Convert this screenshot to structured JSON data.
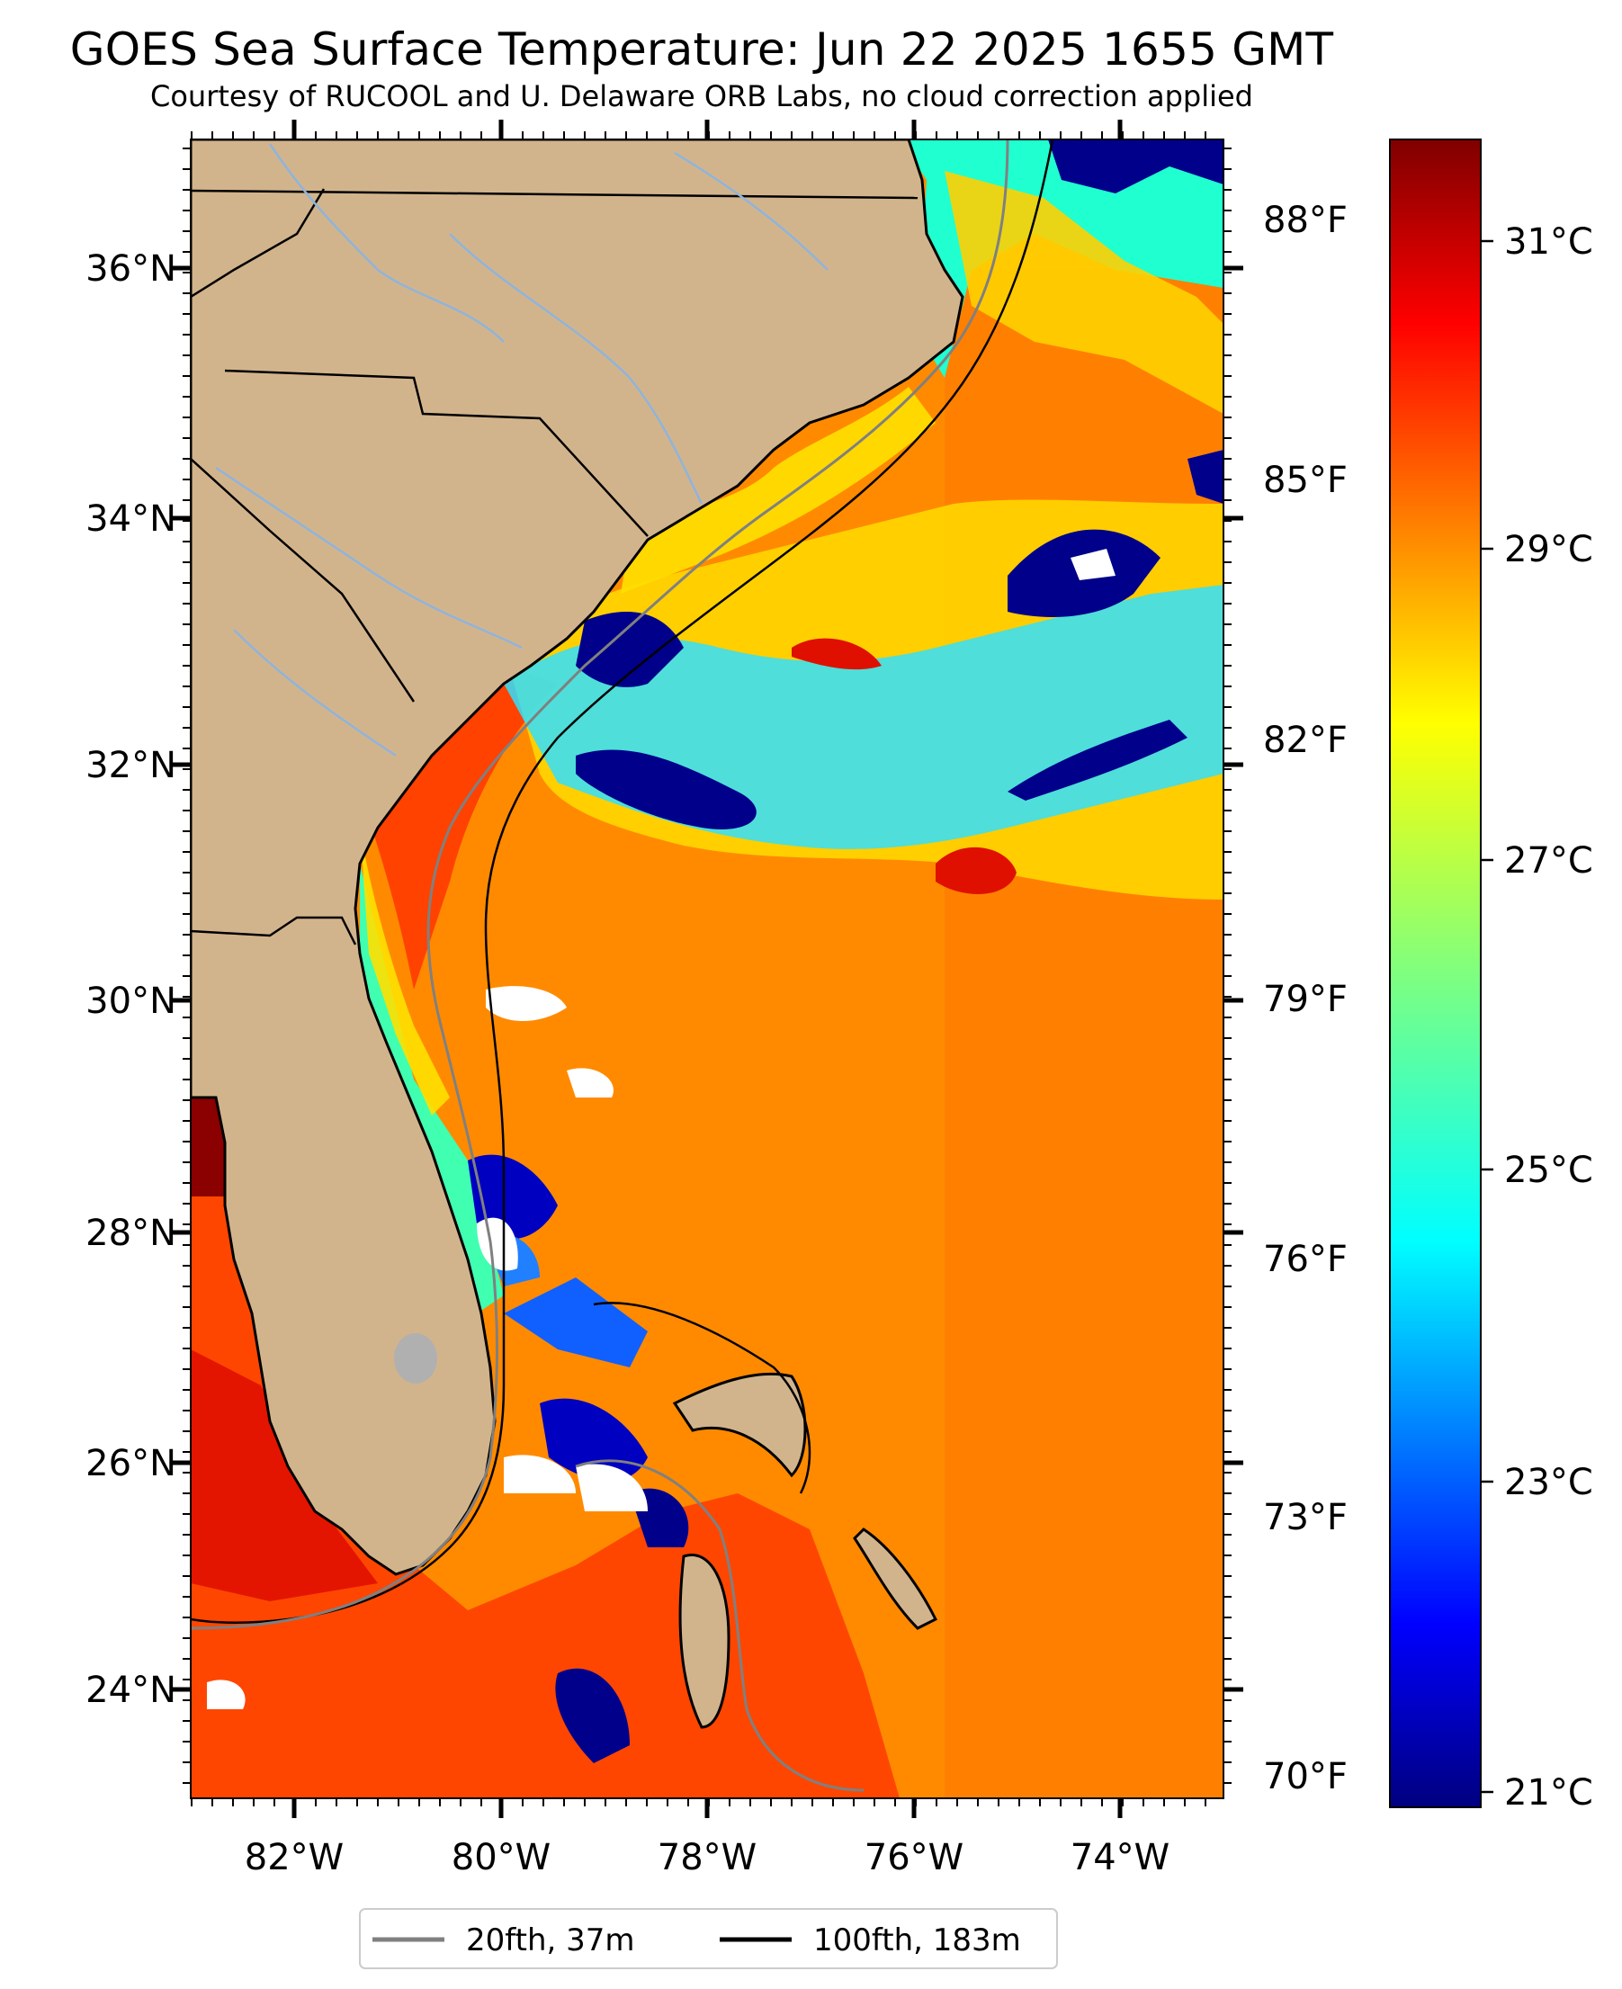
{
  "title": "GOES Sea Surface Temperature: Jun 22 2025 1655 GMT",
  "subtitle": "Courtesy of RUCOOL and U. Delaware ORB Labs, no cloud correction applied",
  "colors": {
    "land": "#d2b48c",
    "ocean_warm": "#ff8c00",
    "ocean_hot": "#e02000",
    "ocean_cool": "#00e0ff",
    "ocean_cold": "#00008b",
    "cloud": "#ffffff",
    "isobath_20": "#808080",
    "isobath_100": "#000000",
    "river": "#8fb4dc"
  },
  "map": {
    "lon_range": [
      -83.0,
      -73.0
    ],
    "lat_range": [
      23.1,
      37.0
    ],
    "lat_ticks": [
      "36°N",
      "34°N",
      "32°N",
      "30°N",
      "28°N",
      "26°N",
      "24°N"
    ],
    "lon_ticks": [
      "82°W",
      "80°W",
      "78°W",
      "76°W",
      "74°W"
    ]
  },
  "fahrenheit_axis": {
    "labels": [
      "88°F",
      "85°F",
      "82°F",
      "79°F",
      "76°F",
      "73°F",
      "70°F"
    ]
  },
  "colorbar": {
    "colormap": "jet",
    "range_c": [
      20.8,
      31.9
    ],
    "labels": [
      "31°C",
      "29°C",
      "27°C",
      "25°C",
      "23°C",
      "21°C"
    ]
  },
  "legend": {
    "items": [
      {
        "label": "20fth, 37m",
        "color": "#808080"
      },
      {
        "label": "100fth, 183m",
        "color": "#000000"
      }
    ]
  }
}
